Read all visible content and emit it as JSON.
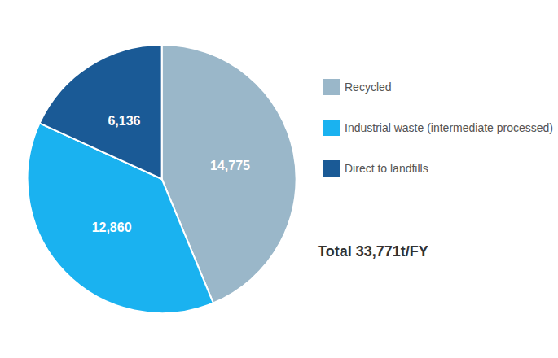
{
  "chart_data": {
    "type": "pie",
    "categories": [
      "Recycled",
      "Industrial waste (intermediate processed)",
      "Direct to landfills"
    ],
    "values": [
      14775,
      12860,
      6136
    ],
    "value_labels": [
      "14,775",
      "12,860",
      "6,136"
    ],
    "colors": [
      "#9ab7c9",
      "#1ab2f0",
      "#1a5a96"
    ],
    "data_labels": true,
    "legend": "right",
    "annotations": [
      "Total 33,771t/FY"
    ]
  }
}
